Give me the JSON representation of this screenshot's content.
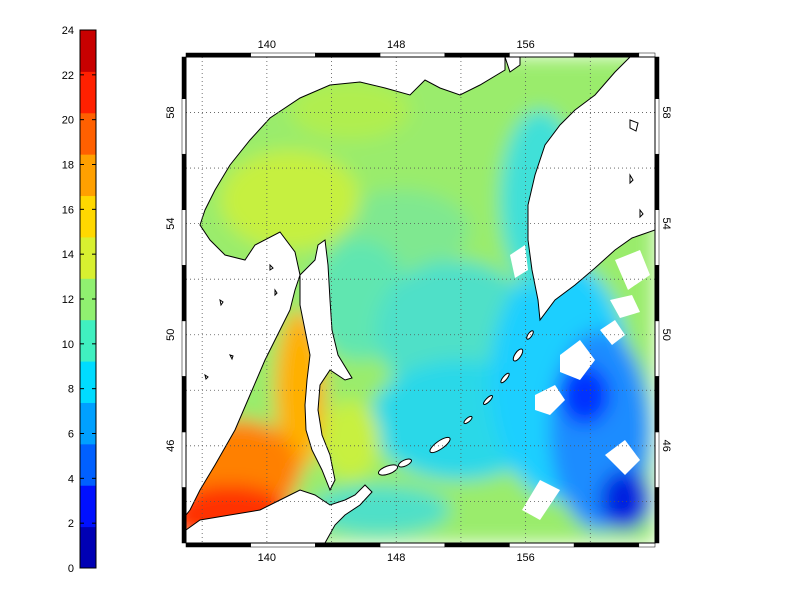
{
  "colorbar": {
    "min": 0,
    "max": 24,
    "ticks": [
      "0",
      "2",
      "4",
      "6",
      "8",
      "10",
      "12",
      "14",
      "16",
      "18",
      "20",
      "22",
      "24"
    ],
    "colors": [
      "#0000b4",
      "#0010ff",
      "#0060ff",
      "#00a0ff",
      "#00dcff",
      "#40f0c0",
      "#90f070",
      "#d8f030",
      "#ffd800",
      "#ffa000",
      "#ff6000",
      "#ff2000",
      "#c80000"
    ]
  },
  "map": {
    "lon_ticks": [
      "140",
      "148",
      "156"
    ],
    "lat_ticks": [
      "46",
      "50",
      "54",
      "58"
    ],
    "lon_range": [
      135,
      164
    ],
    "lat_range": [
      42.5,
      60
    ],
    "land_color": "#ffffff",
    "coast_color": "#000000",
    "grid": true,
    "frame_style": "black-white-checkered"
  }
}
